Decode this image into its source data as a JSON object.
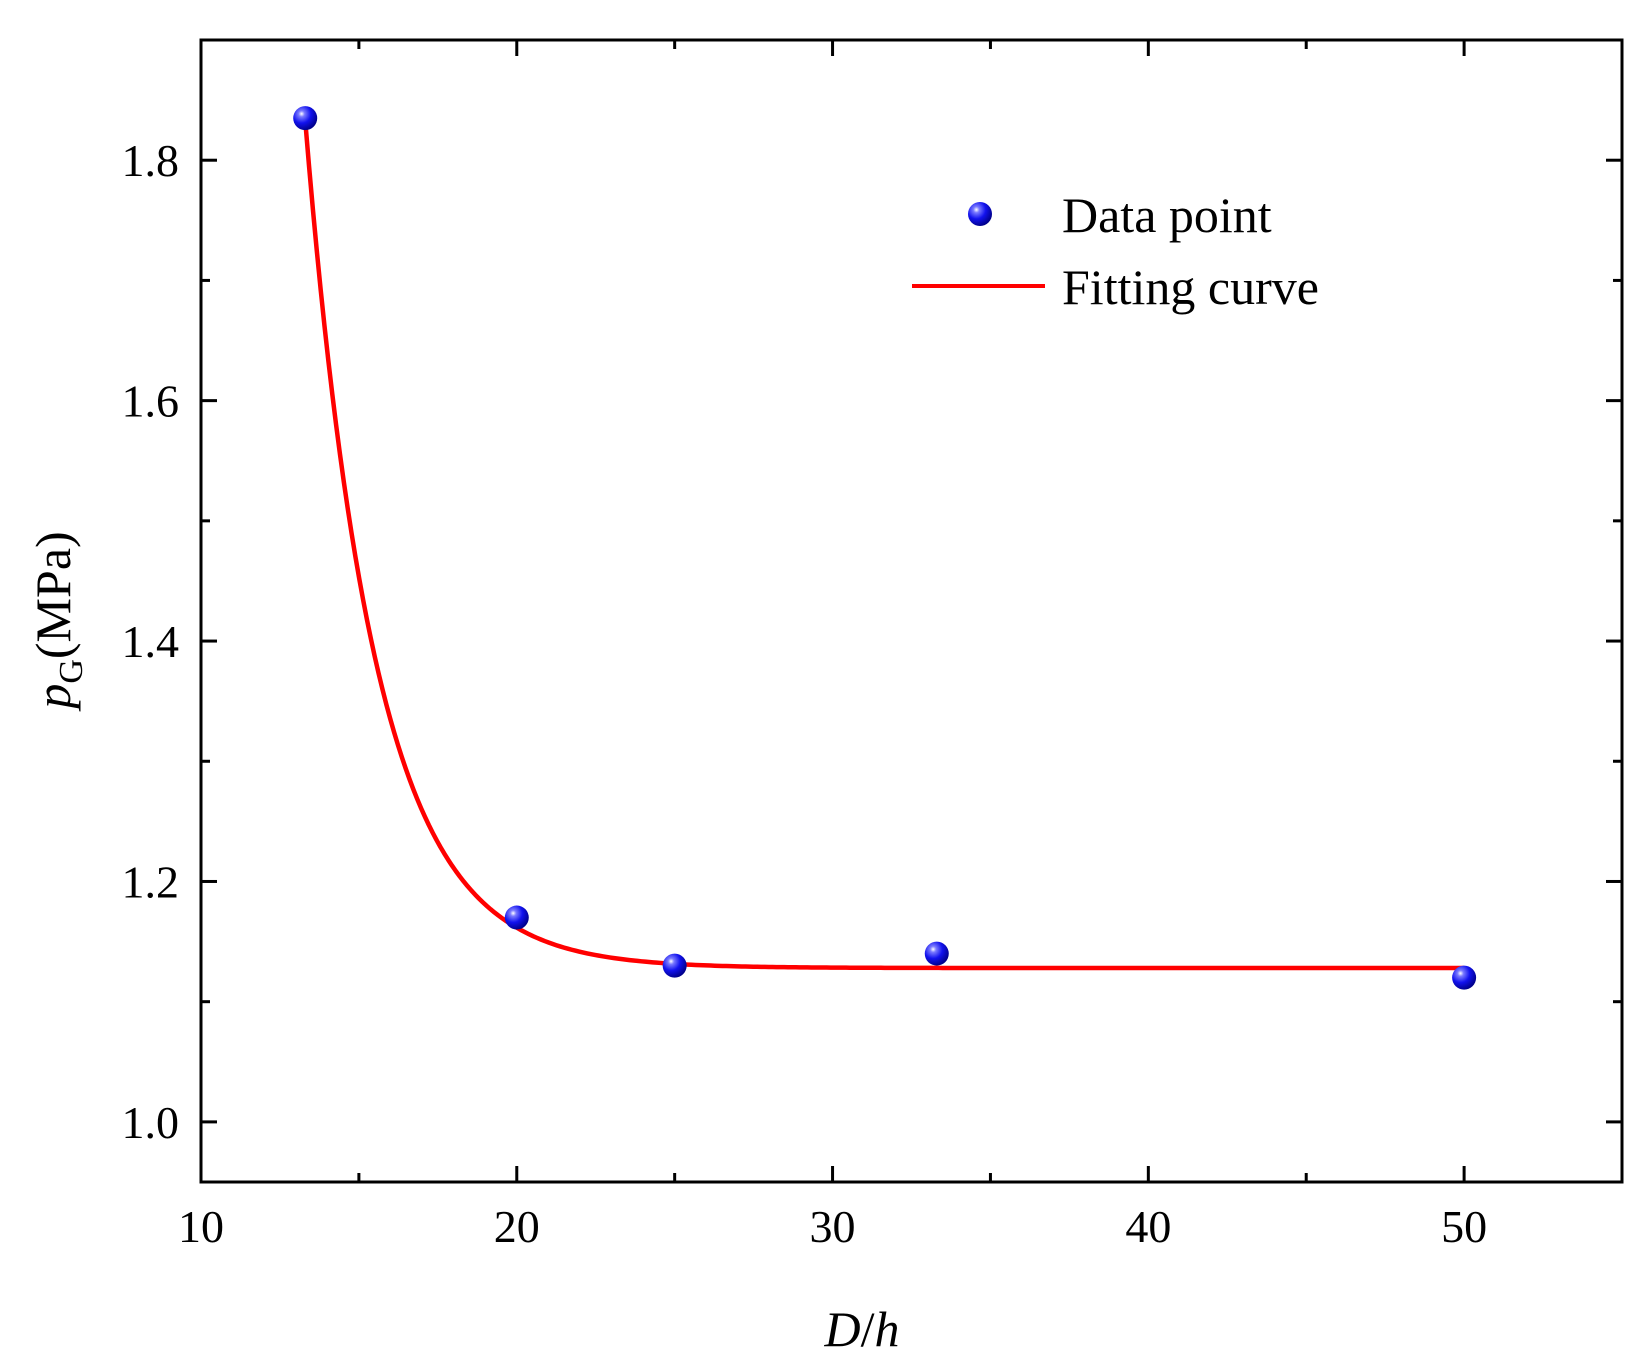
{
  "chart_data": {
    "type": "scatter",
    "title": "",
    "xlabel_parts": [
      "D",
      "/",
      "h"
    ],
    "ylabel_parts": {
      "var": "p",
      "sub": "G",
      "unit": "(MPa)"
    },
    "xlim": [
      10,
      55
    ],
    "ylim": [
      0.95,
      1.9
    ],
    "xticks": [
      10,
      20,
      30,
      40,
      50
    ],
    "yticks": [
      1.0,
      1.2,
      1.4,
      1.6,
      1.8
    ],
    "xtick_labels": [
      "10",
      "20",
      "30",
      "40",
      "50"
    ],
    "ytick_labels": [
      "1.0",
      "1.2",
      "1.4",
      "1.6",
      "1.8"
    ],
    "xminor": [
      15,
      25,
      35,
      45
    ],
    "yminor": [
      1.1,
      1.3,
      1.5,
      1.7
    ],
    "series": [
      {
        "name": "Data point",
        "kind": "scatter",
        "color": "#1010ee",
        "x": [
          13.3,
          20.0,
          25.0,
          33.3,
          50.0
        ],
        "y": [
          1.835,
          1.17,
          1.13,
          1.14,
          1.12
        ]
      },
      {
        "name": "Fitting curve",
        "kind": "line",
        "color": "#ff0000",
        "model": {
          "type": "exp_decay",
          "y0": 1.128,
          "A": 0.705,
          "x0": 13.3,
          "t": 2.2
        },
        "x_range": [
          13.3,
          50.0
        ]
      }
    ],
    "legend": {
      "position": "top-right",
      "entries": [
        "Data point",
        "Fitting curve"
      ]
    }
  }
}
